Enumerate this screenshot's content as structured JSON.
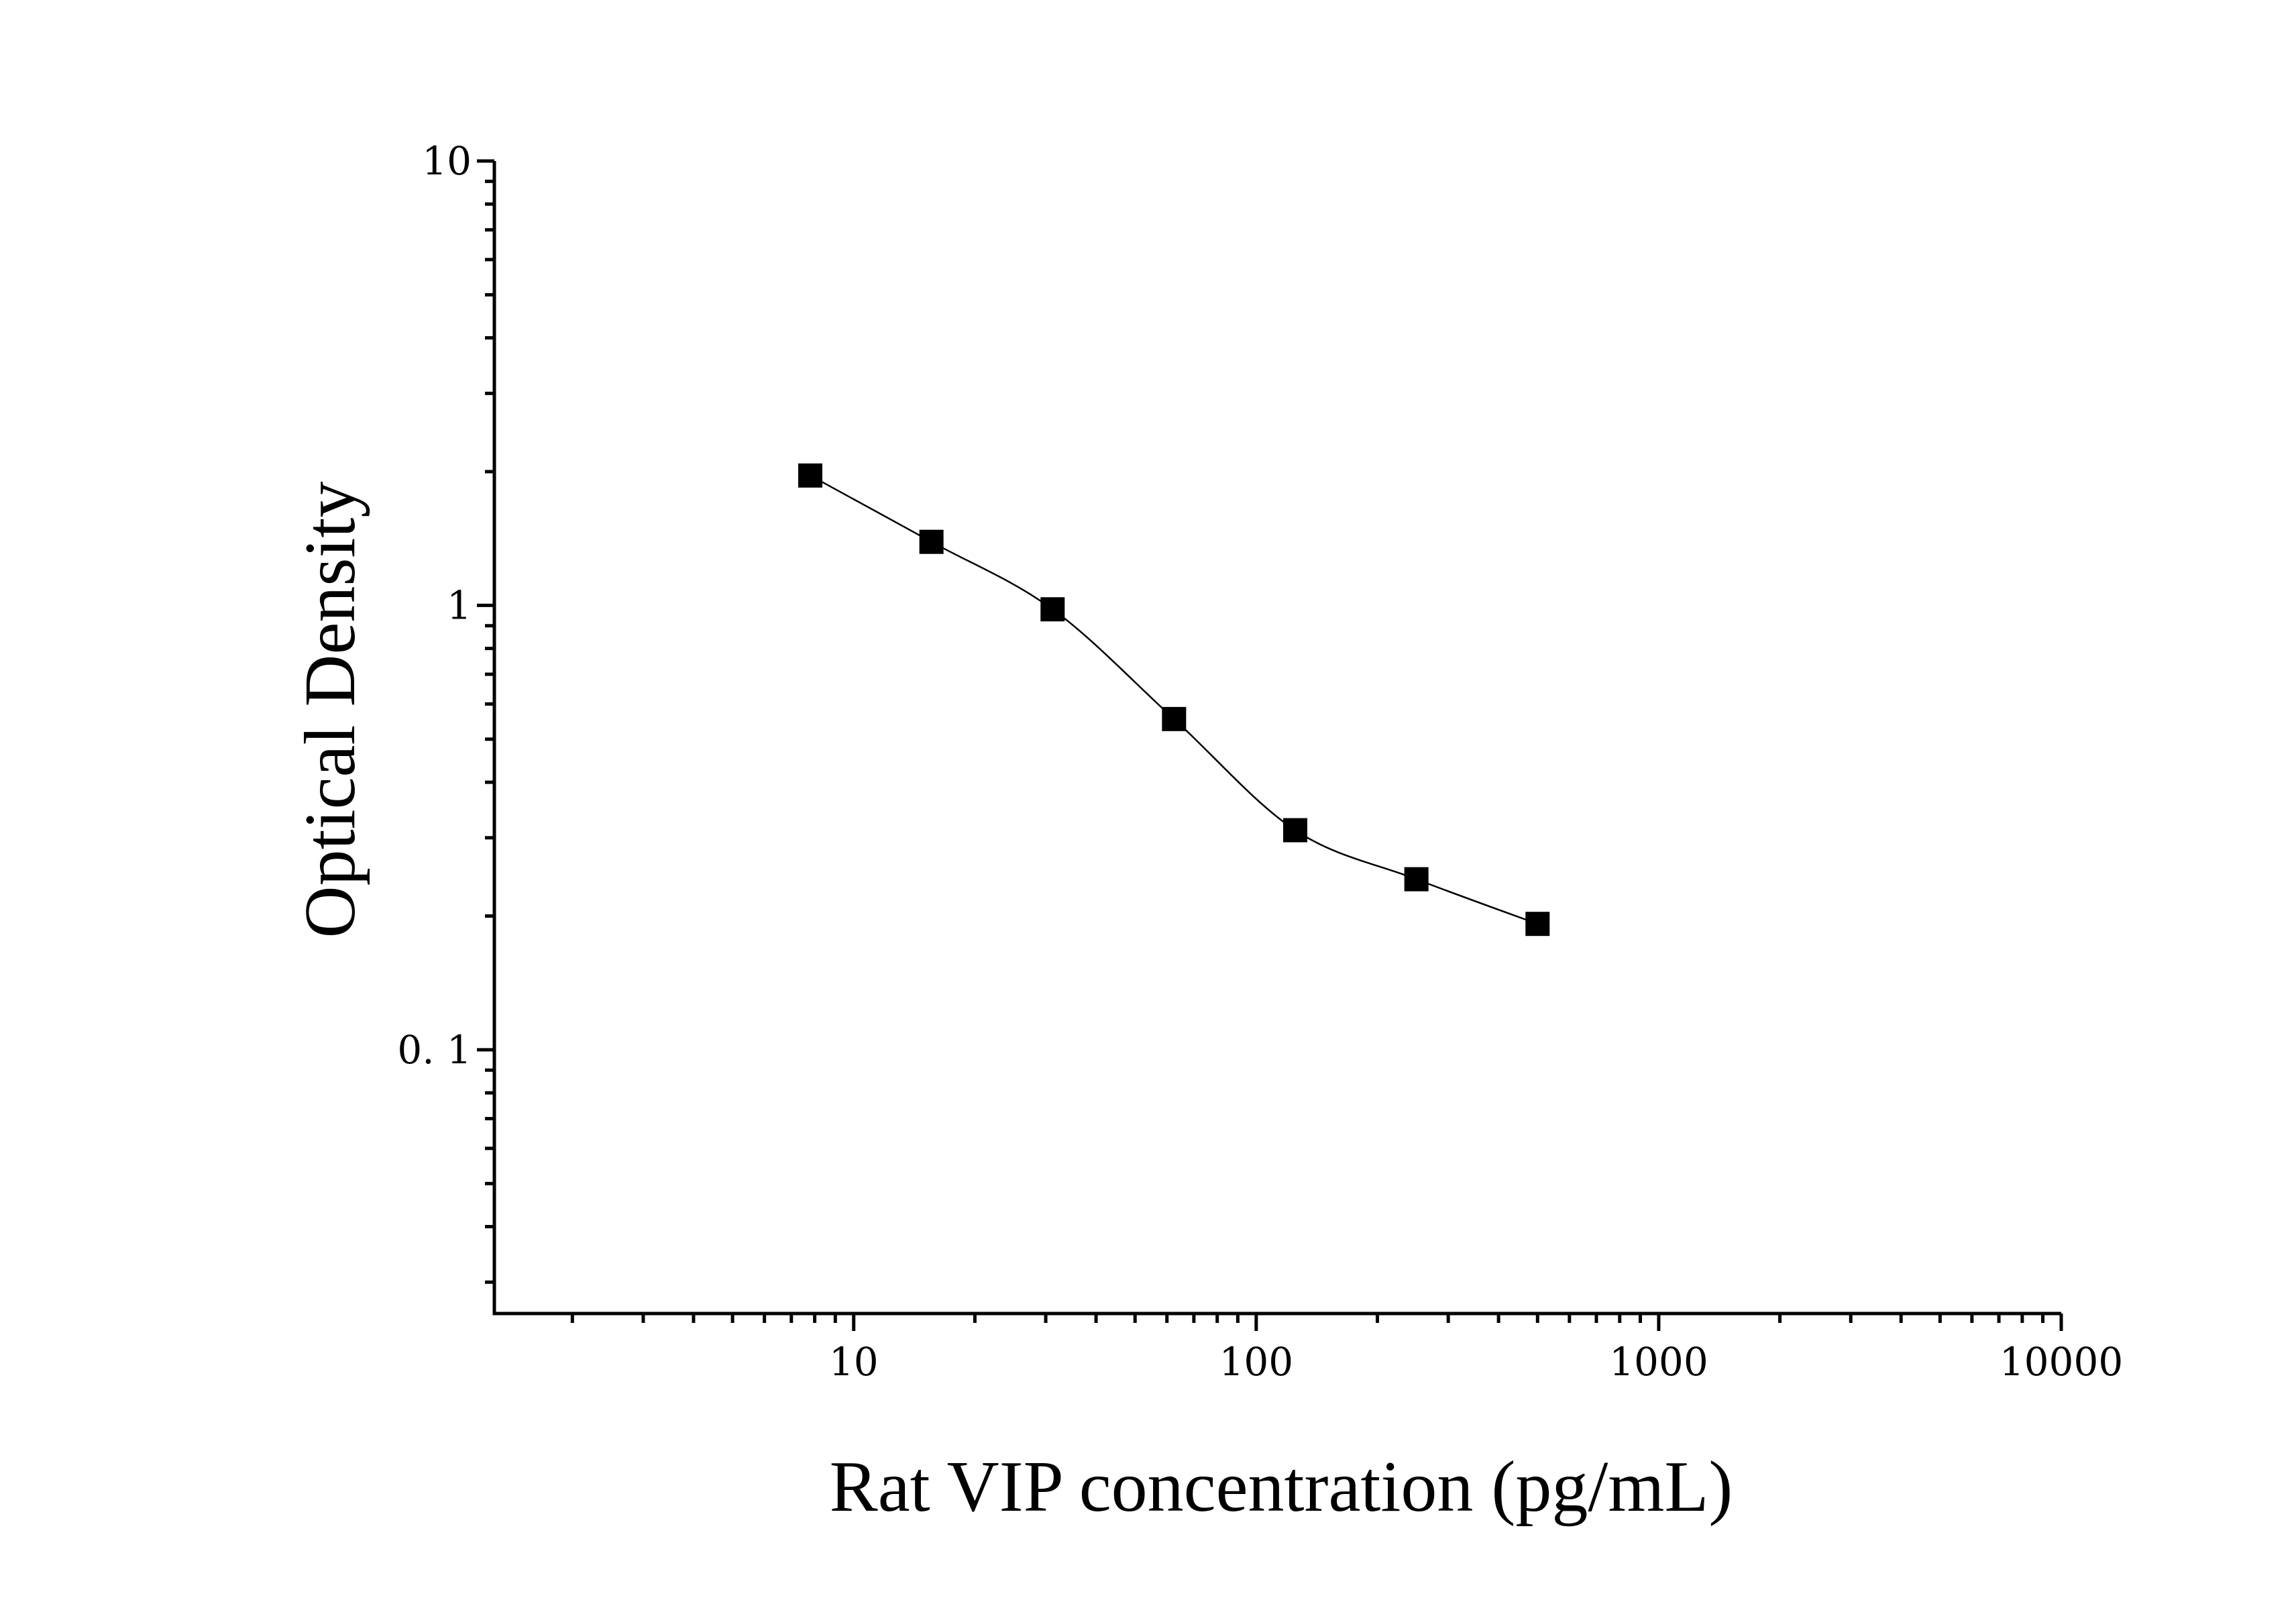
{
  "chart_data": {
    "type": "scatter",
    "title": "",
    "xlabel": "Rat VIP concentration (pg/mL)",
    "ylabel": "Optical Density",
    "x_scale": "log",
    "y_scale": "log",
    "xlim": [
      1.28,
      10000
    ],
    "ylim": [
      0.0255,
      10
    ],
    "x_ticks": [
      {
        "value": 10,
        "label": "10"
      },
      {
        "value": 100,
        "label": "100"
      },
      {
        "value": 1000,
        "label": "1000"
      },
      {
        "value": 10000,
        "label": "10000"
      }
    ],
    "y_ticks": [
      {
        "value": 0.1,
        "label": "0. 1"
      },
      {
        "value": 1,
        "label": "1"
      },
      {
        "value": 10,
        "label": "10"
      }
    ],
    "grid": false,
    "legend": "none",
    "marker": "square",
    "color": "#000000",
    "series": [
      {
        "x": [
          7.8,
          15.6,
          31.2,
          62.5,
          125,
          250,
          500
        ],
        "y": [
          1.96,
          1.39,
          0.98,
          0.555,
          0.312,
          0.242,
          0.192
        ]
      }
    ]
  }
}
